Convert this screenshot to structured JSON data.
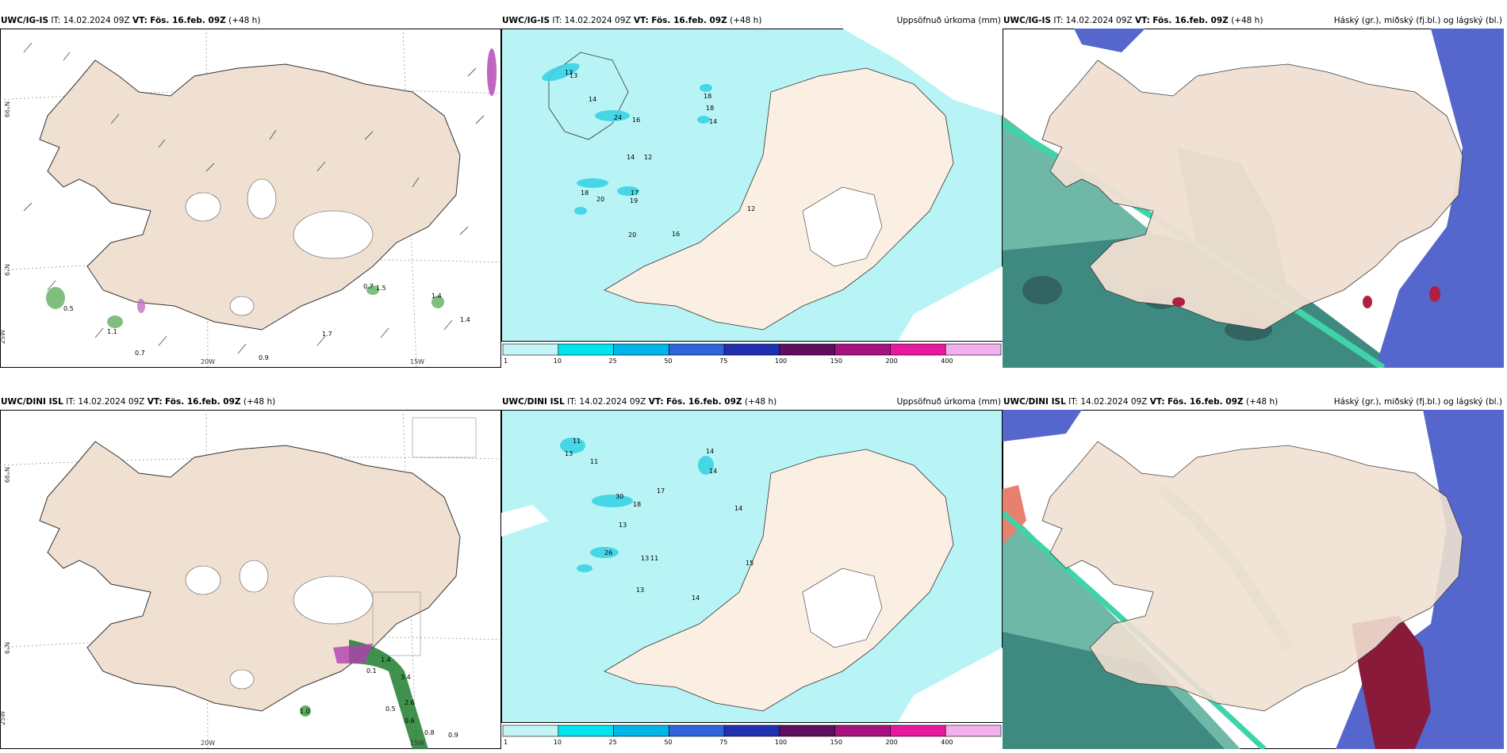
{
  "panels": [
    {
      "model": "UWC/IG-IS",
      "it": "IT: 14.02.2024 09Z",
      "vt_label": "VT:",
      "vt": "Fös. 16.feb. 09Z",
      "lead": "(+48 h)",
      "right": ""
    },
    {
      "model": "UWC/IG-IS",
      "it": "IT: 14.02.2024 09Z",
      "vt_label": "VT:",
      "vt": "Fös. 16.feb. 09Z",
      "lead": "(+48 h)",
      "right": "Uppsöfnuð úrkoma (mm)"
    },
    {
      "model": "UWC/IG-IS",
      "it": "IT: 14.02.2024 09Z",
      "vt_label": "VT:",
      "vt": "Fös. 16.feb. 09Z",
      "lead": "(+48 h)",
      "right": "Háský (gr.), miðský (fj.bl.) og lágský (bl.)"
    },
    {
      "model": "UWC/DINI ISL",
      "it": "IT: 14.02.2024 09Z",
      "vt_label": "VT:",
      "vt": "Fös. 16.feb. 09Z",
      "lead": "(+48 h)",
      "right": ""
    },
    {
      "model": "UWC/DINI ISL",
      "it": "IT: 14.02.2024 09Z",
      "vt_label": "VT:",
      "vt": "Fös. 16.feb. 09Z",
      "lead": "(+48 h)",
      "right": "Uppsöfnuð úrkoma (mm)"
    },
    {
      "model": "UWC/DINI ISL",
      "it": "IT: 14.02.2024 09Z",
      "vt_label": "VT:",
      "vt": "Fös. 16.feb. 09Z",
      "lead": "(+48 h)",
      "right": "Háský (gr.), miðský (fj.bl.) og lágský (bl.)"
    }
  ],
  "axis": {
    "lat_upper": "N°99",
    "lat_lower": "N°9",
    "lat_bottom": "25W",
    "lon_left": "20W",
    "lon_right": "15W"
  },
  "colorbar": {
    "labels": [
      "1",
      "10",
      "25",
      "50",
      "75",
      "100",
      "150",
      "200",
      "400"
    ],
    "colors": [
      "#c3f5f7",
      "#00e4ee",
      "#00b5e8",
      "#2f64dc",
      "#1f2fb0",
      "#5e0f5e",
      "#a8127f",
      "#e8189f",
      "#f2b0ee"
    ]
  },
  "wind_labels_top": [
    "0.5",
    "1.1",
    "0.7",
    "0.9",
    "0.7",
    "1.5",
    "1.4",
    "1.7",
    "1.4"
  ],
  "wind_labels_bottom": [
    "1.0",
    "0.1",
    "1.4",
    "3.4",
    "2.6",
    "0.5",
    "0.6",
    "0.8",
    "0.9"
  ],
  "precip_labels_top": [
    "13",
    "14",
    "24",
    "16",
    "18",
    "14",
    "12",
    "20",
    "17",
    "18",
    "19",
    "20",
    "13",
    "16",
    "12",
    "18",
    "14"
  ],
  "precip_labels_bottom": [
    "11",
    "13",
    "11",
    "30",
    "18",
    "13",
    "26",
    "13",
    "11",
    "14",
    "14",
    "14",
    "15",
    "13",
    "14",
    "17"
  ],
  "colors": {
    "land": "#f0e0d2",
    "ocean": "#ffffff",
    "precip_light": "#b8f3f6",
    "cloud_high": "#6fbfb2",
    "cloud_mid": "#5566cc",
    "cloud_low": "#2e6a6a"
  }
}
